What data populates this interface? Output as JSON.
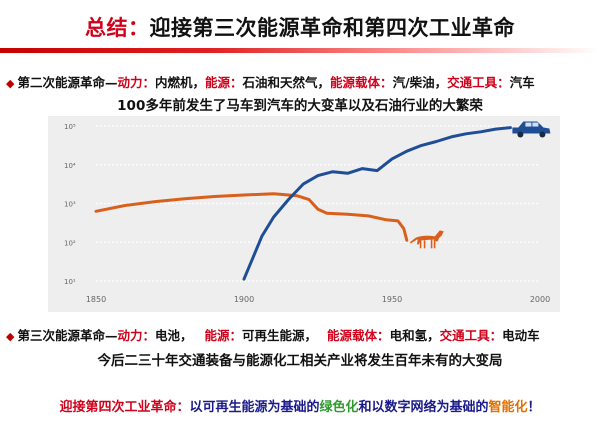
{
  "title": {
    "prefix": "总结：",
    "main": "迎接第三次能源革命和第四次工业革命"
  },
  "second": {
    "label": "第二次能源革命—",
    "k_power": "动力：",
    "v_power": "内燃机，",
    "k_energy": "能源：",
    "v_energy": "石油和天然气，",
    "k_carrier": "能源载体：",
    "v_carrier": "汽/柴油，",
    "k_transport": "交通工具：",
    "v_transport": "汽车"
  },
  "second_sub": "100多年前发生了马车到汽车的大变革以及石油行业的大繁荣",
  "third": {
    "label": "第三次能源革命—",
    "k_power": "动力：",
    "v_power": "电池，",
    "k_energy": "能源：",
    "v_energy": "可再生能源，",
    "k_carrier": "能源载体：",
    "v_carrier": "电和氢，",
    "k_transport": "交通工具：",
    "v_transport": "电动车"
  },
  "third_sub": "今后二三十年交通装备与能源化工相关产业将发生百年未有的大变局",
  "footer": {
    "lead": "迎接第四次工业革命：",
    "mid1": "以可再生能源为基础的",
    "green": "绿色化",
    "mid2": "和以数字网络为基础的",
    "orange": "智能化",
    "end": "！"
  },
  "colors": {
    "accent_red": "#d0021b",
    "car_blue": "#1f4e96",
    "horse_orange": "#d9601c",
    "chart_bg": "#eeeeee"
  },
  "chart_data": {
    "type": "line",
    "x_ticks": [
      "1850",
      "1900",
      "1950",
      "2000"
    ],
    "y_ticks": [
      "10¹",
      "10²",
      "10³",
      "10⁴",
      "10⁵"
    ],
    "xlim": [
      1850,
      2000
    ],
    "ylim_log10": [
      1,
      5
    ],
    "grid": true,
    "series": [
      {
        "icon": "horse-icon",
        "color": "#d9601c",
        "points": [
          [
            1850,
            2.8
          ],
          [
            1860,
            2.95
          ],
          [
            1870,
            3.05
          ],
          [
            1880,
            3.12
          ],
          [
            1890,
            3.18
          ],
          [
            1900,
            3.22
          ],
          [
            1910,
            3.25
          ],
          [
            1918,
            3.2
          ],
          [
            1922,
            3.1
          ],
          [
            1925,
            2.85
          ],
          [
            1928,
            2.75
          ],
          [
            1935,
            2.72
          ],
          [
            1942,
            2.68
          ],
          [
            1948,
            2.58
          ],
          [
            1952,
            2.55
          ],
          [
            1954,
            2.35
          ],
          [
            1955,
            2.05
          ]
        ]
      },
      {
        "icon": "car-icon",
        "color": "#1f4e96",
        "points": [
          [
            1900,
            1.05
          ],
          [
            1903,
            1.6
          ],
          [
            1906,
            2.15
          ],
          [
            1910,
            2.65
          ],
          [
            1915,
            3.1
          ],
          [
            1920,
            3.5
          ],
          [
            1925,
            3.72
          ],
          [
            1930,
            3.82
          ],
          [
            1935,
            3.78
          ],
          [
            1940,
            3.9
          ],
          [
            1945,
            3.85
          ],
          [
            1950,
            4.15
          ],
          [
            1955,
            4.35
          ],
          [
            1960,
            4.5
          ],
          [
            1965,
            4.6
          ],
          [
            1970,
            4.72
          ],
          [
            1975,
            4.8
          ],
          [
            1980,
            4.85
          ],
          [
            1985,
            4.92
          ],
          [
            1990,
            4.96
          ]
        ]
      }
    ]
  }
}
